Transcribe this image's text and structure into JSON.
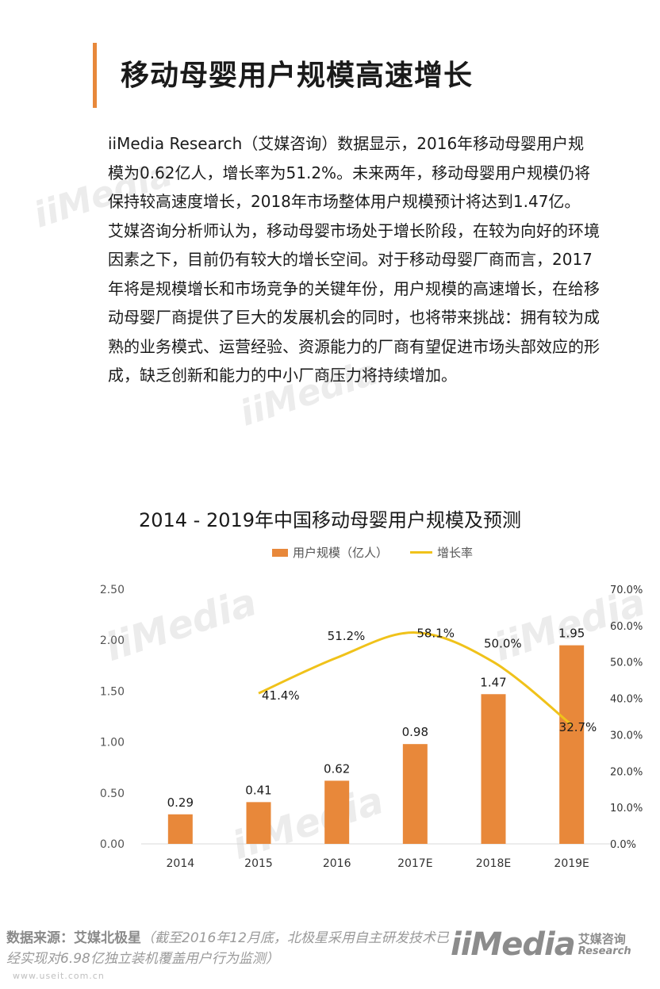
{
  "page": {
    "title": "移动母婴用户规模高速增长",
    "paragraphs": [
      "iiMedia Research（艾媒咨询）数据显示，2016年移动母婴用户规模为0.62亿人，增长率为51.2%。未来两年，移动母婴用户规模仍将保持较高速度增长，2018年市场整体用户规模预计将达到1.47亿。",
      "艾媒咨询分析师认为，移动母婴市场处于增长阶段，在较为向好的环境因素之下，目前仍有较大的增长空间。对于移动母婴厂商而言，2017年将是规模增长和市场竞争的关键年份，用户规模的高速增长，在给移动母婴厂商提供了巨大的发展机会的同时，也将带来挑战：拥有较为成熟的业务模式、运营经验、资源能力的厂商有望促进市场头部效应的形成，缺乏创新和能力的中小厂商压力将持续增加。"
    ]
  },
  "chart_data": {
    "type": "bar",
    "title": "2014 - 2019年中国移动母婴用户规模及预测",
    "categories": [
      "2014",
      "2015",
      "2016",
      "2017E",
      "2018E",
      "2019E"
    ],
    "series": [
      {
        "name": "用户规模（亿人）",
        "type": "bar",
        "values": [
          0.29,
          0.41,
          0.62,
          0.98,
          1.47,
          1.95
        ],
        "labels": [
          "0.29",
          "0.41",
          "0.62",
          "0.98",
          "1.47",
          "1.95"
        ],
        "color": "#e8883a"
      },
      {
        "name": "增长率",
        "type": "line",
        "axis": "right",
        "values": [
          null,
          41.4,
          51.2,
          58.1,
          50.0,
          32.7
        ],
        "labels": [
          "",
          "41.4%",
          "51.2%",
          "58.1%",
          "50.0%",
          "32.7%"
        ],
        "color": "#f0c21a"
      }
    ],
    "y_left": {
      "ylim": [
        0,
        2.5
      ],
      "ticks": [
        "0.00",
        "0.50",
        "1.00",
        "1.50",
        "2.00",
        "2.50"
      ]
    },
    "y_right": {
      "ylim": [
        0,
        70
      ],
      "ticks": [
        "0.0%",
        "10.0%",
        "20.0%",
        "30.0%",
        "40.0%",
        "50.0%",
        "60.0%",
        "70.0%"
      ]
    },
    "legend_position": "top",
    "grid": false
  },
  "footer": {
    "source_label": "数据来源：艾媒北极星",
    "source_note": "（截至2016年12月底，北极星采用自主研发技术已经实现对6.98亿独立装机覆盖用户行为监测）",
    "url": "www.useit.com.cn",
    "logo_mark": "iiMedia",
    "logo_cn": "艾媒咨询",
    "logo_en": "Research"
  }
}
